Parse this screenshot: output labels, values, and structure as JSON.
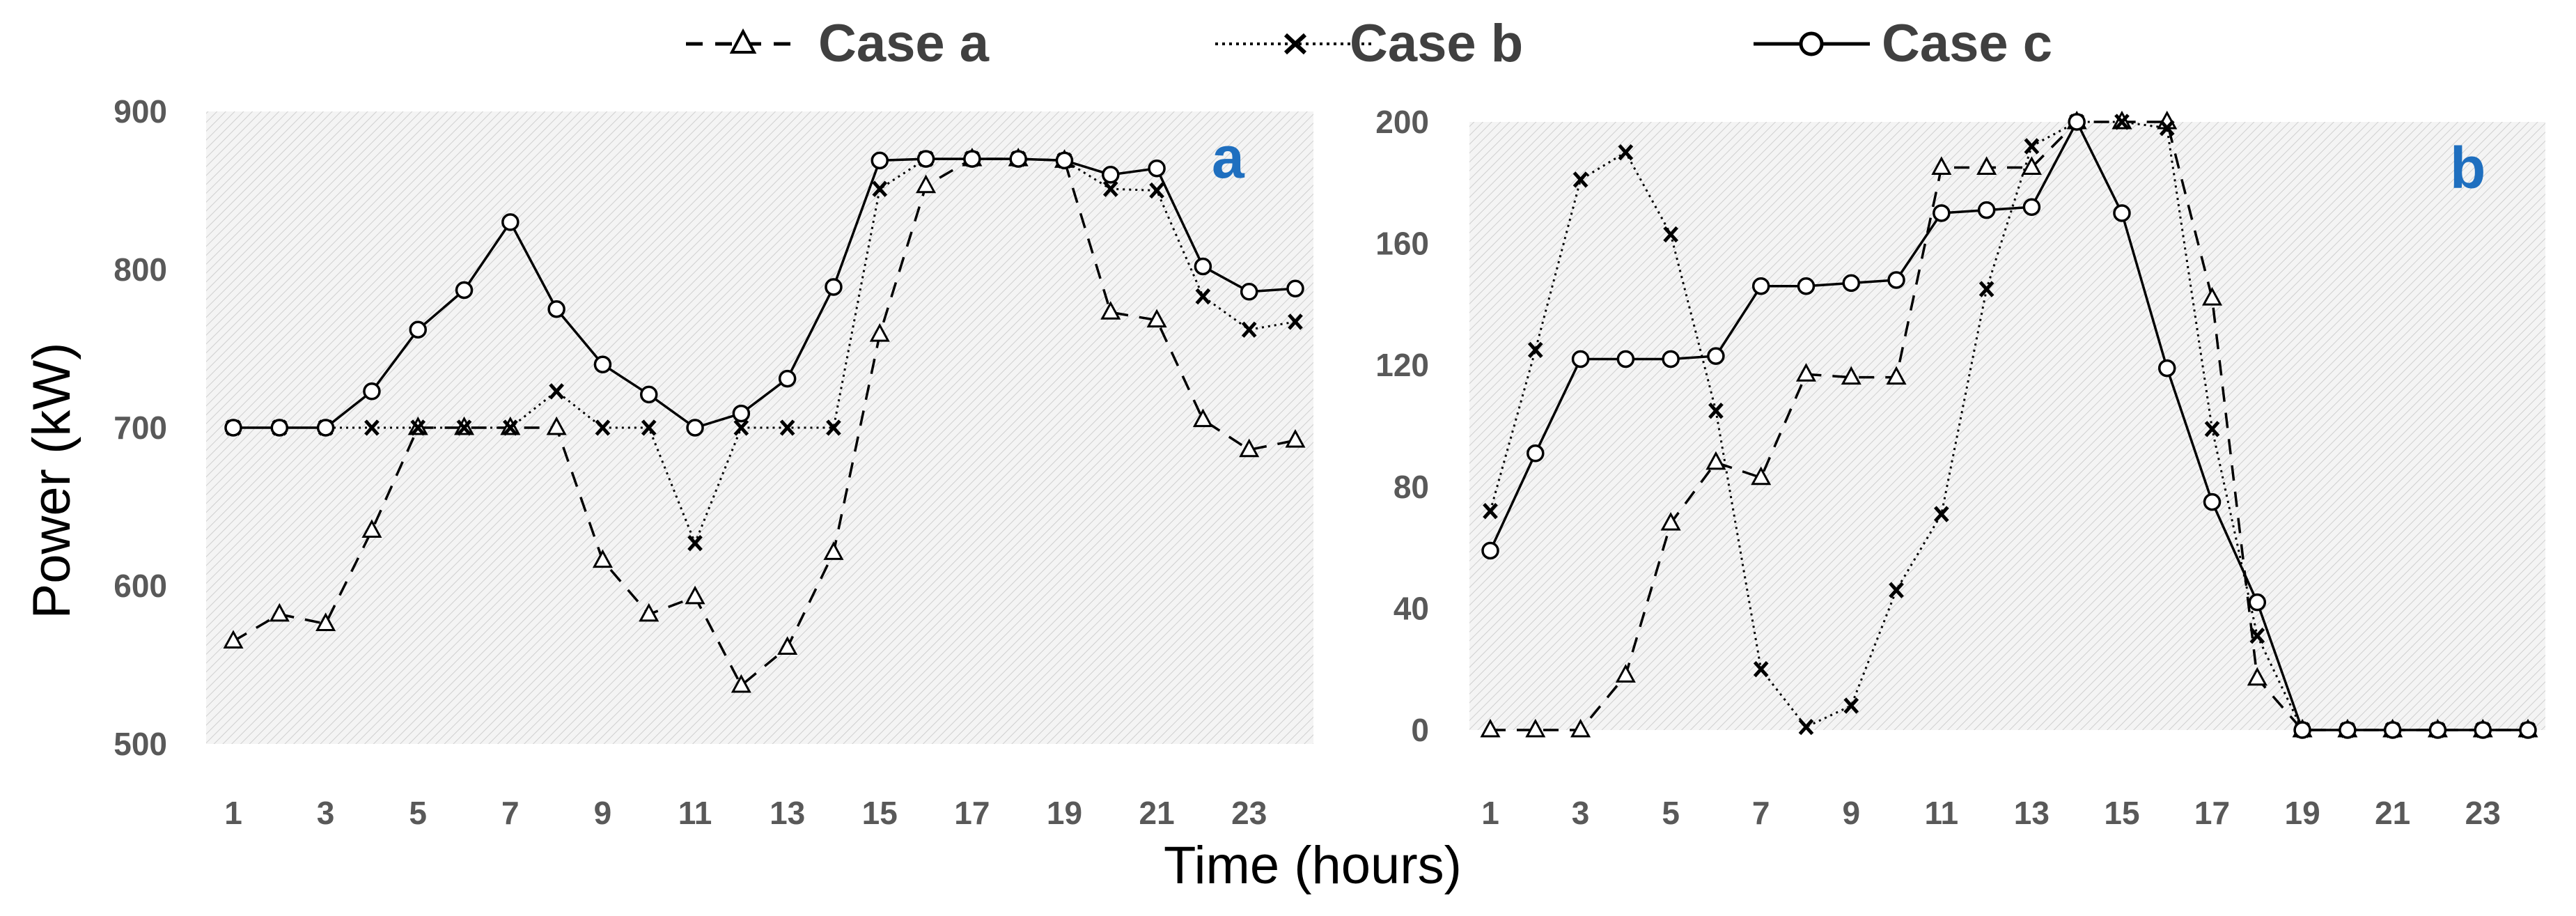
{
  "chart_data": [
    {
      "type": "line",
      "panel_label": "a",
      "x": [
        1,
        2,
        3,
        4,
        5,
        6,
        7,
        8,
        9,
        10,
        11,
        12,
        13,
        14,
        15,
        16,
        17,
        18,
        19,
        20,
        21,
        22,
        23,
        24
      ],
      "x_tick_labels": [
        "1",
        "3",
        "5",
        "7",
        "9",
        "11",
        "13",
        "15",
        "17",
        "19",
        "21",
        "23"
      ],
      "ylim": [
        500,
        900
      ],
      "y_tick_labels": [
        "500",
        "600",
        "700",
        "800",
        "900"
      ],
      "series": [
        {
          "name": "Case a",
          "marker": "triangle",
          "dash": "dashed",
          "values": [
            565,
            582,
            576,
            635,
            700,
            700,
            700,
            700,
            616,
            582,
            593,
            537,
            561,
            621,
            759,
            853,
            870,
            870,
            869,
            773,
            768,
            705,
            686,
            692
          ]
        },
        {
          "name": "Case b",
          "marker": "x",
          "dash": "dotted",
          "values": [
            700,
            700,
            700,
            700,
            700,
            700,
            700,
            723,
            700,
            700,
            627,
            700,
            700,
            700,
            851,
            870,
            870,
            870,
            869,
            851,
            850,
            783,
            762,
            767
          ]
        },
        {
          "name": "Case c",
          "marker": "circle",
          "dash": "solid",
          "values": [
            700,
            700,
            700,
            723,
            762,
            787,
            830,
            775,
            740,
            721,
            700,
            709,
            731,
            789,
            869,
            870,
            870,
            870,
            869,
            860,
            864,
            802,
            786,
            788
          ]
        }
      ],
      "grid": "hatched background"
    },
    {
      "type": "line",
      "panel_label": "b",
      "x": [
        1,
        2,
        3,
        4,
        5,
        6,
        7,
        8,
        9,
        10,
        11,
        12,
        13,
        14,
        15,
        16,
        17,
        18,
        19,
        20,
        21,
        22,
        23,
        24
      ],
      "x_tick_labels": [
        "1",
        "3",
        "5",
        "7",
        "9",
        "11",
        "13",
        "15",
        "17",
        "19",
        "21",
        "23"
      ],
      "ylim": [
        0,
        200
      ],
      "y_tick_labels": [
        "0",
        "40",
        "80",
        "120",
        "160",
        "200"
      ],
      "series": [
        {
          "name": "Case a",
          "marker": "triangle",
          "dash": "dashed",
          "values": [
            0,
            0,
            0,
            18,
            68,
            88,
            83,
            117,
            116,
            116,
            185,
            185,
            185,
            200,
            200,
            200,
            142,
            17,
            0,
            0,
            0,
            0,
            0,
            0
          ]
        },
        {
          "name": "Case b",
          "marker": "x",
          "dash": "dotted",
          "values": [
            72,
            125,
            181,
            190,
            163,
            105,
            20,
            1,
            8,
            46,
            71,
            145,
            192,
            200,
            200,
            198,
            99,
            31,
            0,
            0,
            0,
            0,
            0,
            0
          ]
        },
        {
          "name": "Case c",
          "marker": "circle",
          "dash": "solid",
          "values": [
            59,
            91,
            122,
            122,
            122,
            123,
            146,
            146,
            147,
            148,
            170,
            171,
            172,
            200,
            170,
            119,
            75,
            42,
            0,
            0,
            0,
            0,
            0,
            0
          ]
        }
      ],
      "grid": "hatched background"
    }
  ],
  "labels": {
    "ylabel": "Power (kW)",
    "xlabel": "Time (hours)",
    "panel_a": "a",
    "panel_b": "b",
    "legend": [
      "Case a",
      "Case b",
      "Case c"
    ]
  },
  "colors": {
    "line": "#000000",
    "tick_text": "#595959",
    "legend_text": "#404040",
    "panel_tag": "#1f6fbf",
    "hatch": "#d0d0d0"
  }
}
